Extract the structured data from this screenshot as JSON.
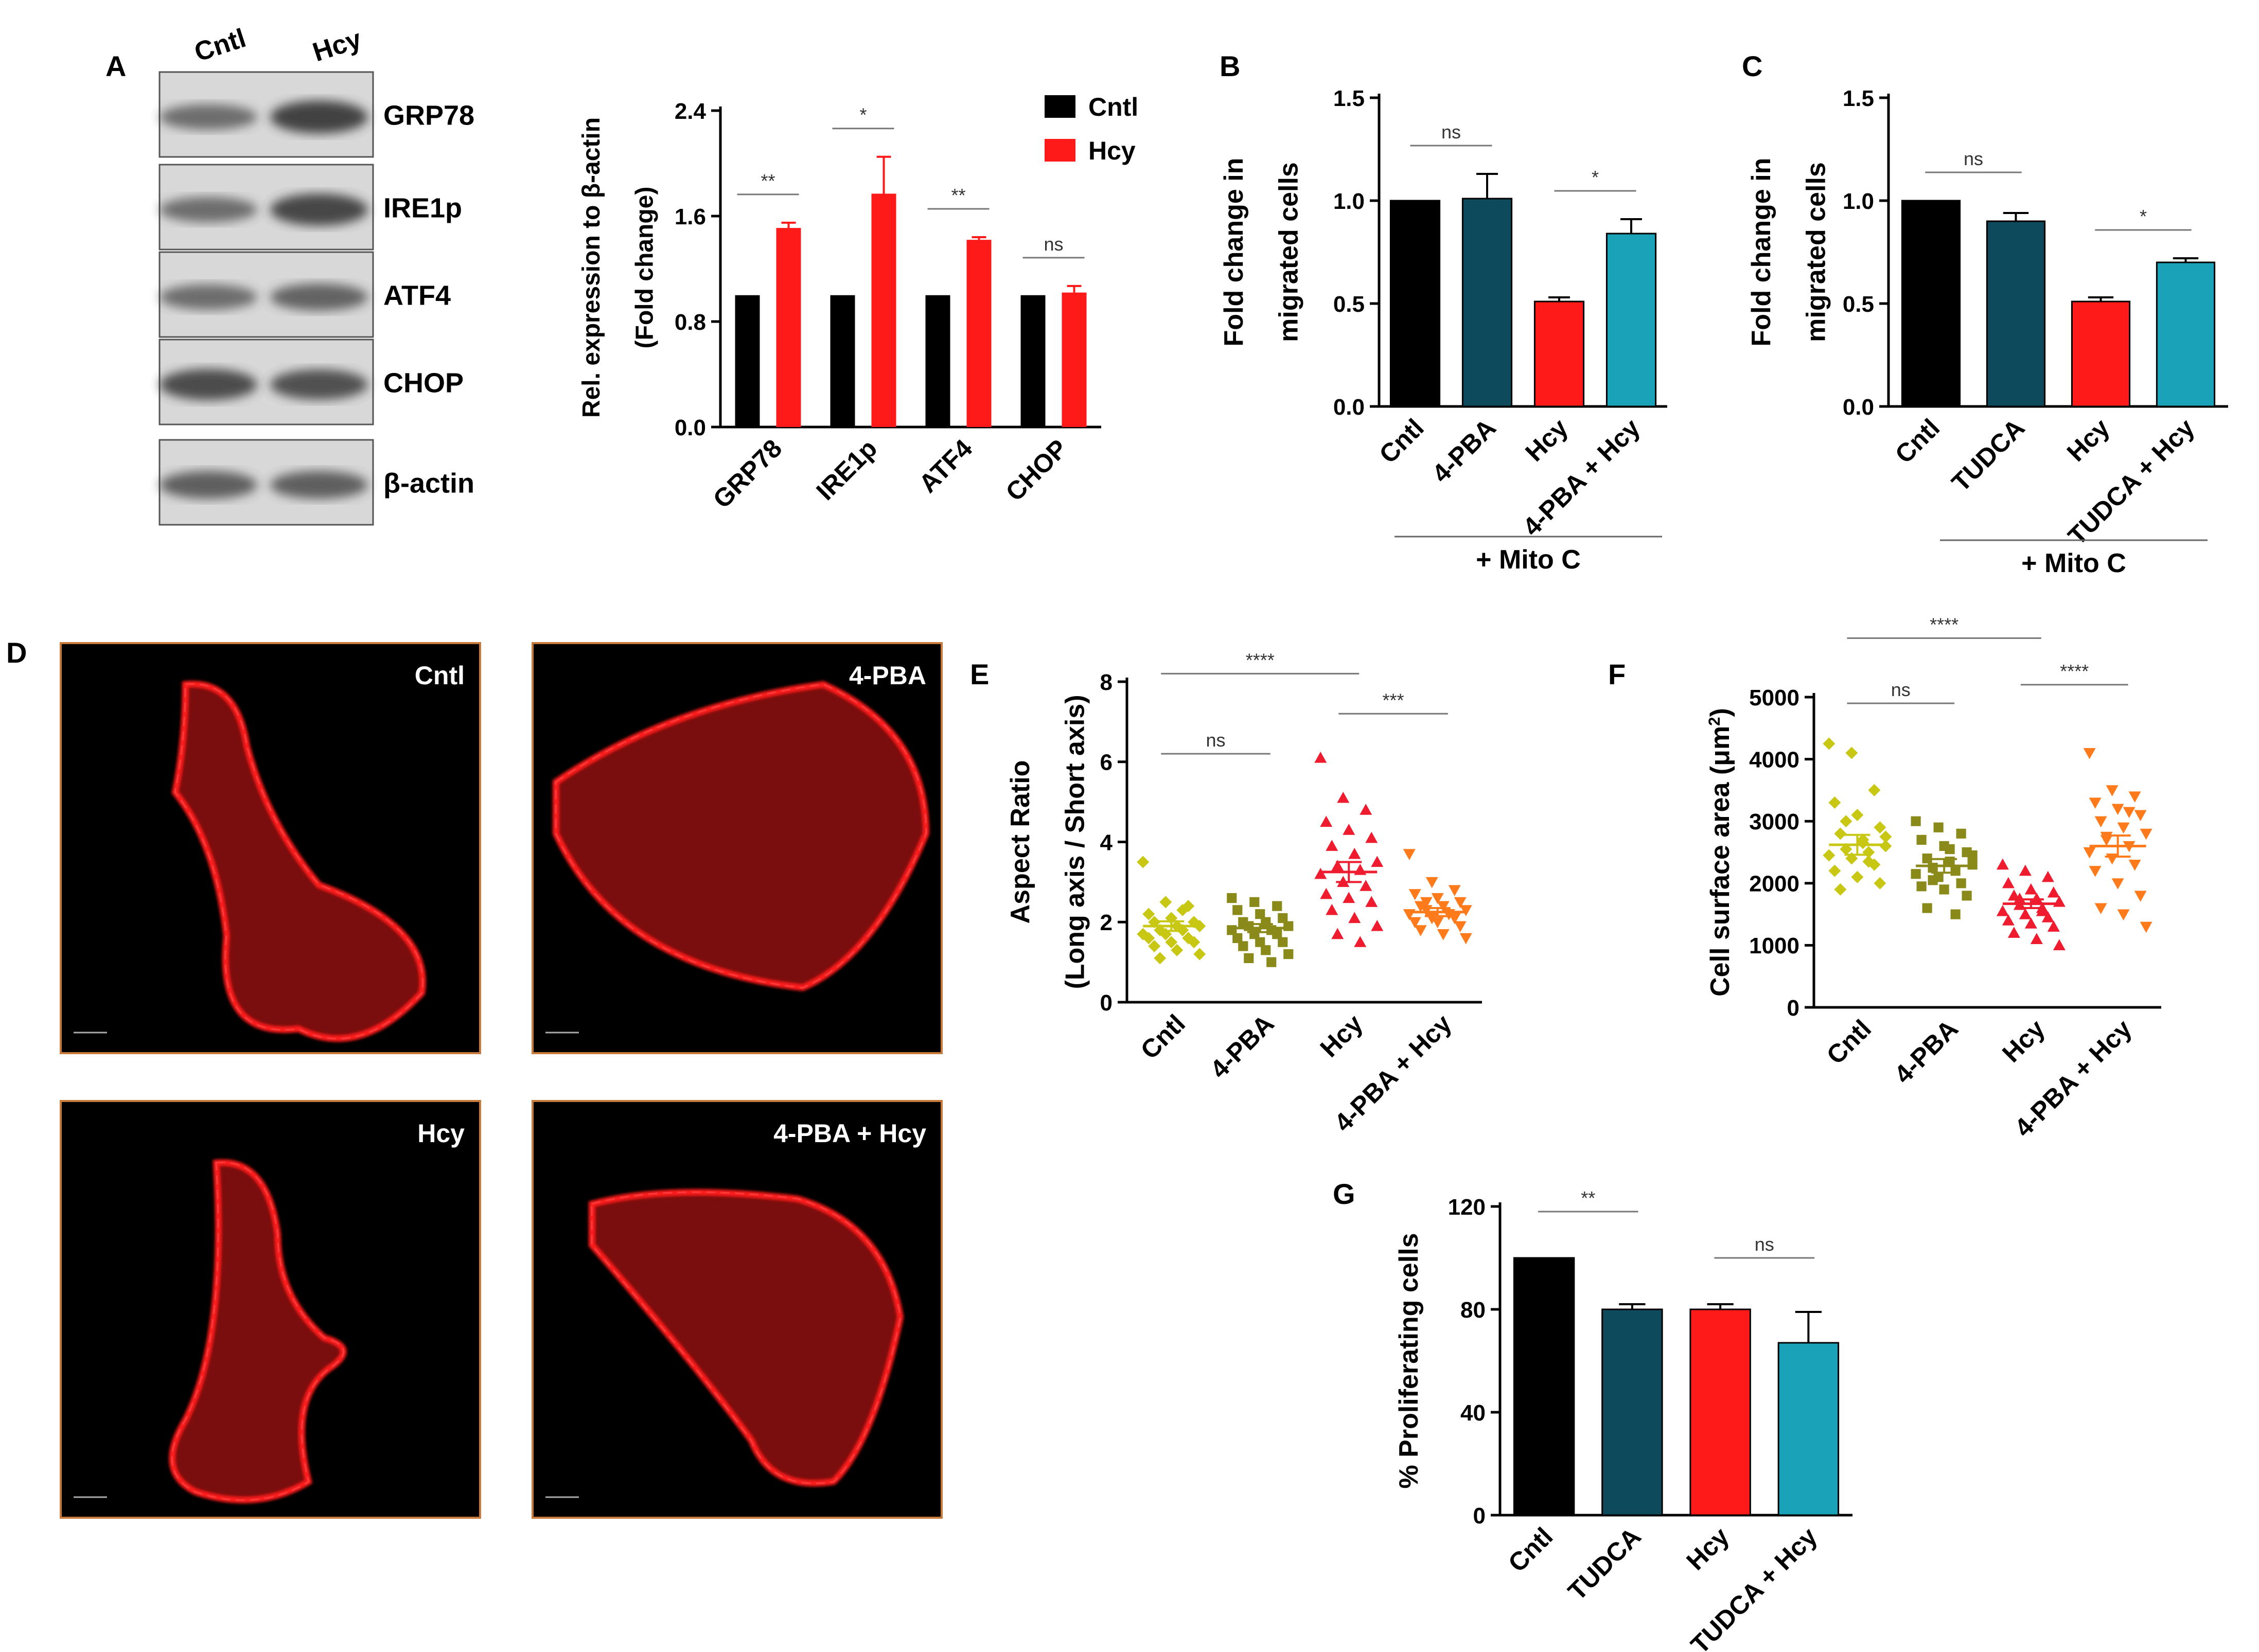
{
  "panel_labels": {
    "A": "A",
    "B": "B",
    "C": "C",
    "D": "D",
    "E": "E",
    "F": "F",
    "G": "G"
  },
  "colors": {
    "black": "#000000",
    "red": "#ff1a1a",
    "dark_teal": "#0d4a5c",
    "teal": "#1aa3b8",
    "olive_light": "#c8c814",
    "olive": "#8a8a1a",
    "red_point": "#ee1c2e",
    "orange": "#ff7a1a",
    "blot_bg": "#d8d8d8",
    "blot_band": "#3a3a3a"
  },
  "blot": {
    "lane_labels": [
      "Cntl",
      "Hcy"
    ],
    "proteins": [
      "GRP78",
      "IRE1p",
      "ATF4",
      "CHOP",
      "β-actin"
    ]
  },
  "micrographs": {
    "labels": [
      "Cntl",
      "4-PBA",
      "Hcy",
      "4-PBA + Hcy"
    ]
  },
  "chart_data": [
    {
      "id": "A_bar",
      "type": "bar",
      "title": "",
      "ylabel_line1": "Rel. expression to β-actin",
      "ylabel_line2": "(Fold change)",
      "categories": [
        "GRP78",
        "IRE1p",
        "ATF4",
        "CHOP"
      ],
      "series": [
        {
          "name": "Cntl",
          "color": "#000000",
          "values": [
            1.0,
            1.0,
            1.0,
            1.0
          ],
          "errors": [
            0,
            0,
            0,
            0
          ]
        },
        {
          "name": "Hcy",
          "color": "#ff1a1a",
          "values": [
            1.51,
            1.77,
            1.42,
            1.02
          ],
          "errors": [
            0.04,
            0.28,
            0.02,
            0.05
          ]
        }
      ],
      "ylim": [
        0,
        2.4
      ],
      "yticks": [
        "0.0",
        "0.8",
        "1.6",
        "2.4"
      ],
      "significance": [
        "**",
        "*",
        "**",
        "ns"
      ],
      "legend": [
        "Cntl",
        "Hcy"
      ]
    },
    {
      "id": "B_bar",
      "type": "bar",
      "ylabel_line1": "Fold change in",
      "ylabel_line2": "migrated cells",
      "categories": [
        "Cntl",
        "4-PBA",
        "Hcy",
        "4-PBA + Hcy"
      ],
      "values": [
        1.0,
        1.01,
        0.51,
        0.84
      ],
      "errors": [
        0,
        0.12,
        0.02,
        0.07
      ],
      "colors": [
        "#000000",
        "#0d4a5c",
        "#ff1a1a",
        "#1aa3b8"
      ],
      "ylim": [
        0,
        1.5
      ],
      "yticks": [
        "0.0",
        "0.5",
        "1.0",
        "1.5"
      ],
      "brackets": [
        {
          "from": 0,
          "to": 1,
          "label": "ns"
        },
        {
          "from": 2,
          "to": 3,
          "label": "*"
        }
      ],
      "group_label": "+ Mito C"
    },
    {
      "id": "C_bar",
      "type": "bar",
      "ylabel_line1": "Fold change in",
      "ylabel_line2": "migrated cells",
      "categories": [
        "Cntl",
        "TUDCA",
        "Hcy",
        "TUDCA + Hcy"
      ],
      "values": [
        1.0,
        0.9,
        0.51,
        0.7
      ],
      "errors": [
        0,
        0.04,
        0.02,
        0.02
      ],
      "colors": [
        "#000000",
        "#0d4a5c",
        "#ff1a1a",
        "#1aa3b8"
      ],
      "ylim": [
        0,
        1.5
      ],
      "yticks": [
        "0.0",
        "0.5",
        "1.0",
        "1.5"
      ],
      "brackets": [
        {
          "from": 0,
          "to": 1,
          "label": "ns"
        },
        {
          "from": 2,
          "to": 3,
          "label": "*"
        }
      ],
      "group_label": "+ Mito C"
    },
    {
      "id": "E_scatter",
      "type": "scatter",
      "ylabel_line1": "Aspect Ratio",
      "ylabel_line2": "(Long axis / Short axis)",
      "categories": [
        "Cntl",
        "4-PBA",
        "Hcy",
        "4-PBA + Hcy"
      ],
      "markers": [
        "diamond",
        "square",
        "triangle-up",
        "triangle-down"
      ],
      "colors": [
        "#c8c814",
        "#8a8a1a",
        "#ee1c2e",
        "#ff7a1a"
      ],
      "points": [
        [
          3.5,
          2.5,
          2.4,
          2.2,
          2.1,
          2.0,
          2.0,
          1.9,
          1.9,
          1.8,
          1.8,
          1.7,
          1.7,
          1.6,
          1.6,
          1.5,
          1.5,
          1.4,
          1.3,
          1.2,
          1.1,
          2.3
        ],
        [
          2.6,
          2.5,
          2.4,
          2.3,
          2.2,
          2.1,
          2.0,
          2.0,
          1.9,
          1.9,
          1.8,
          1.8,
          1.7,
          1.7,
          1.6,
          1.5,
          1.5,
          1.4,
          1.3,
          1.2,
          1.1,
          1.0
        ],
        [
          6.1,
          5.1,
          4.8,
          4.5,
          4.3,
          4.1,
          3.9,
          3.7,
          3.5,
          3.4,
          3.3,
          3.2,
          3.0,
          2.9,
          2.7,
          2.6,
          2.5,
          2.3,
          2.1,
          1.9,
          1.7,
          1.5
        ],
        [
          3.7,
          3.0,
          2.8,
          2.7,
          2.6,
          2.5,
          2.4,
          2.4,
          2.3,
          2.3,
          2.2,
          2.2,
          2.1,
          2.1,
          2.0,
          2.0,
          1.9,
          1.8,
          1.7,
          1.6,
          2.5,
          2.2
        ]
      ],
      "means": [
        1.9,
        1.85,
        3.25,
        2.25
      ],
      "sems": [
        0.12,
        0.1,
        0.25,
        0.1
      ],
      "ylim": [
        0,
        8
      ],
      "yticks": [
        "0",
        "2",
        "4",
        "6",
        "8"
      ],
      "brackets": [
        {
          "from": 0,
          "to": 1,
          "label": "ns",
          "y": 6.2
        },
        {
          "from": 0,
          "to": 2,
          "label": "****",
          "y": 8.2
        },
        {
          "from": 2,
          "to": 3,
          "label": "***",
          "y": 7.2
        }
      ]
    },
    {
      "id": "F_scatter",
      "type": "scatter",
      "ylabel_line1": "Cell surface area (μm",
      "ylabel_sup": "2",
      "ylabel_line1_end": ")",
      "categories": [
        "Cntl",
        "4-PBA",
        "Hcy",
        "4-PBA + Hcy"
      ],
      "markers": [
        "diamond",
        "square",
        "triangle-up",
        "triangle-down"
      ],
      "colors": [
        "#c8c814",
        "#8a8a1a",
        "#ee1c2e",
        "#ff7a1a"
      ],
      "points": [
        [
          4250,
          4100,
          3500,
          3300,
          3100,
          2900,
          2800,
          2700,
          2600,
          2550,
          2500,
          2450,
          2400,
          2300,
          2200,
          2100,
          2000,
          1900,
          2650,
          2750,
          3000,
          2350
        ],
        [
          3000,
          2900,
          2800,
          2700,
          2600,
          2500,
          2400,
          2350,
          2300,
          2250,
          2200,
          2150,
          2100,
          2000,
          1950,
          1900,
          1800,
          1600,
          2550,
          2450,
          2050,
          1500
        ],
        [
          2300,
          2200,
          2100,
          2000,
          1900,
          1850,
          1800,
          1750,
          1700,
          1650,
          1600,
          1550,
          1500,
          1450,
          1400,
          1350,
          1300,
          1200,
          1100,
          1000,
          1750,
          1550
        ],
        [
          4100,
          3500,
          3400,
          3300,
          3200,
          3100,
          3000,
          2900,
          2800,
          2700,
          2600,
          2500,
          2400,
          2300,
          2200,
          2000,
          1800,
          1600,
          1500,
          1300,
          2750,
          3150
        ]
      ],
      "means": [
        2620,
        2280,
        1670,
        2600
      ],
      "sems": [
        160,
        110,
        70,
        170
      ],
      "ylim": [
        0,
        5000
      ],
      "yticks": [
        "0",
        "1000",
        "2000",
        "3000",
        "4000",
        "5000"
      ],
      "brackets": [
        {
          "from": 0,
          "to": 1,
          "label": "ns",
          "y": 4900
        },
        {
          "from": 0,
          "to": 2,
          "label": "****",
          "y": 5950
        },
        {
          "from": 2,
          "to": 3,
          "label": "****",
          "y": 5200
        }
      ]
    },
    {
      "id": "G_bar",
      "type": "bar",
      "ylabel_line1": "% Proliferating cells",
      "categories": [
        "Cntl",
        "TUDCA",
        "Hcy",
        "TUDCA + Hcy"
      ],
      "values": [
        100,
        80,
        80,
        67
      ],
      "errors": [
        0,
        2,
        2,
        12
      ],
      "colors": [
        "#000000",
        "#0d4a5c",
        "#ff1a1a",
        "#1aa3b8"
      ],
      "ylim": [
        0,
        120
      ],
      "yticks": [
        "0",
        "40",
        "80",
        "120"
      ],
      "brackets": [
        {
          "from": 0,
          "to": 1,
          "label": "**"
        },
        {
          "from": 2,
          "to": 3,
          "label": "ns"
        }
      ]
    }
  ]
}
